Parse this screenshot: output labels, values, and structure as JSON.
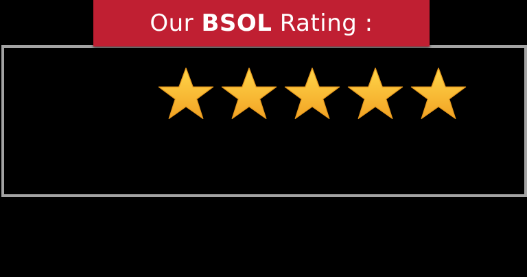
{
  "title": {
    "prefix": "Our ",
    "brand": "BSOL",
    "suffix": " Rating :"
  },
  "rating": {
    "value": 5,
    "max": 5
  },
  "colors": {
    "banner": "#c01f32",
    "title_text": "#ffffff",
    "box_border": "#a3a3a3",
    "background": "#000000",
    "star_light": "#ffd64a",
    "star_dark": "#f2a324"
  },
  "icons": {
    "star": "star-icon"
  }
}
